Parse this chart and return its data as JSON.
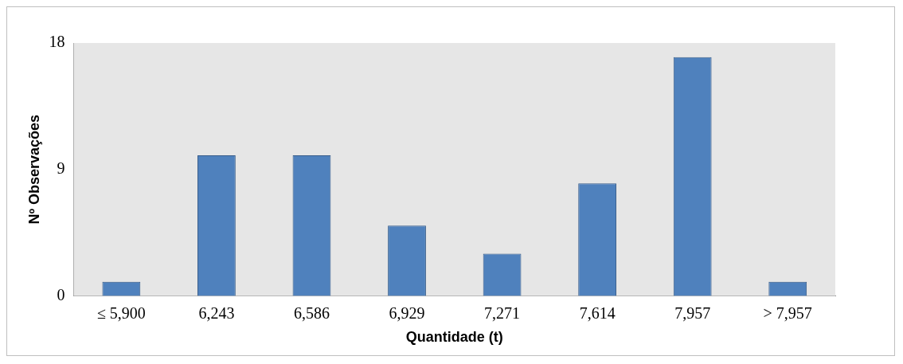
{
  "chart_data": {
    "type": "bar",
    "xlabel": "Quantidade (t)",
    "ylabel": "Nº Observações",
    "categories": [
      "≤ 5,900",
      "6,243",
      "6,586",
      "6,929",
      "7,271",
      "7,614",
      "7,957",
      "> 7,957"
    ],
    "values": [
      1,
      10,
      10,
      5,
      3,
      8,
      17,
      1
    ],
    "color": "#4f81bd",
    "ylim": [
      0,
      18
    ],
    "yticks": [
      0,
      9,
      18
    ],
    "legend": false
  }
}
